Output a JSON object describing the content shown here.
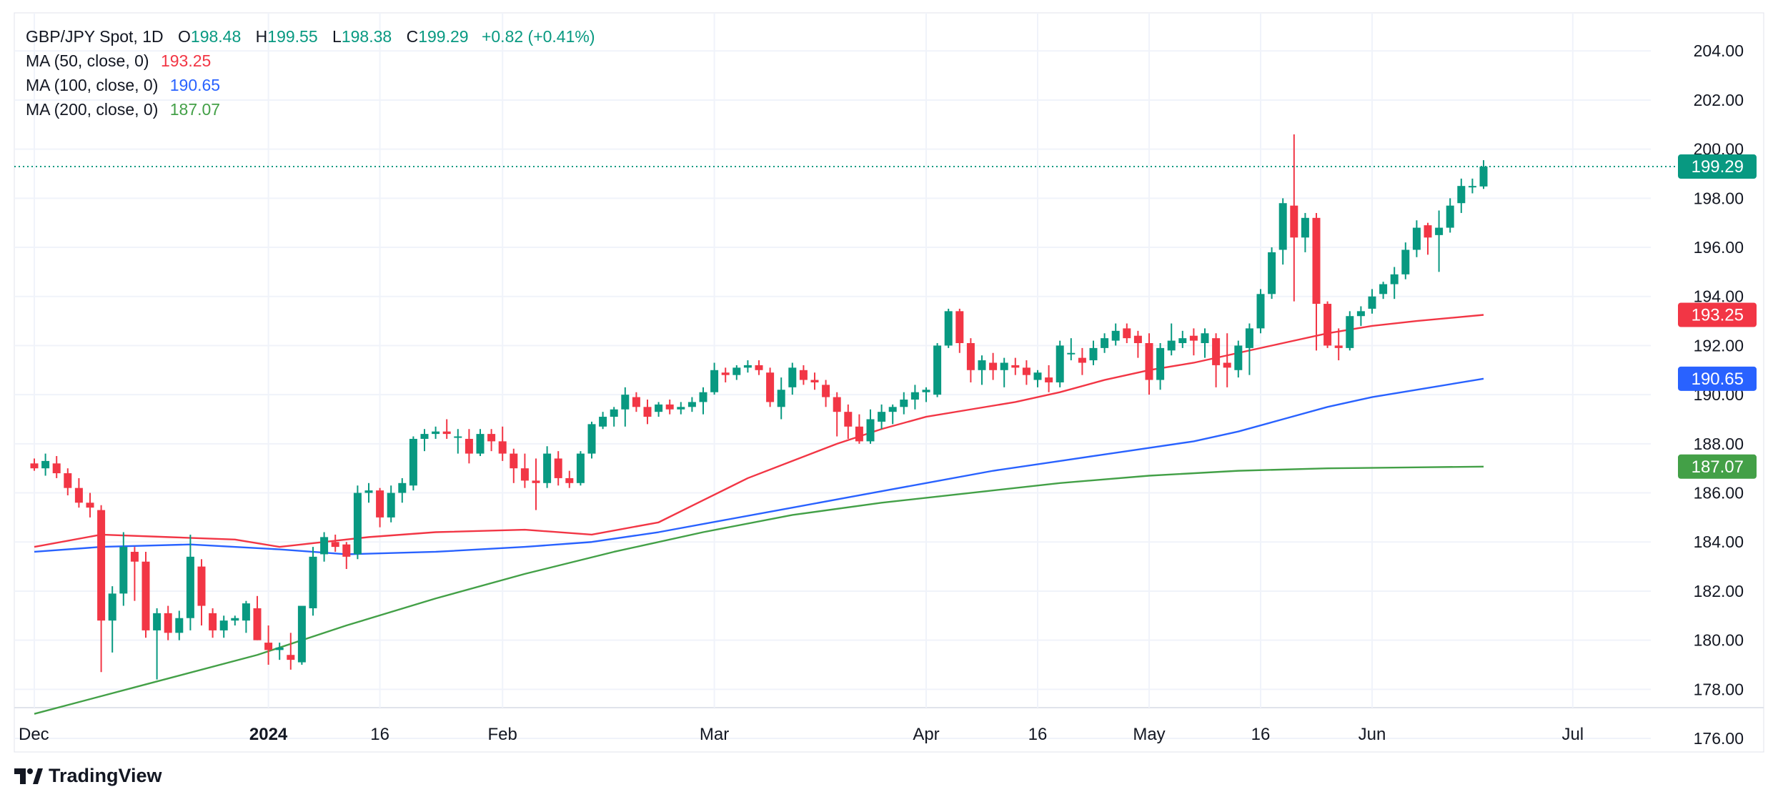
{
  "legend": {
    "symbol": "GBP/JPY Spot, 1D",
    "open_label": "O",
    "open": "198.48",
    "high_label": "H",
    "high": "199.55",
    "low_label": "L",
    "low": "198.38",
    "close_label": "C",
    "close": "199.29",
    "change": "+0.82 (+0.41%)",
    "ma50_label": "MA (50, close, 0)",
    "ma50_value": "193.25",
    "ma100_label": "MA (100, close, 0)",
    "ma100_value": "190.65",
    "ma200_label": "MA (200, close, 0)",
    "ma200_value": "187.07"
  },
  "brand": {
    "name": "TradingView"
  },
  "colors": {
    "up": "#089981",
    "down": "#f23645",
    "ma50": "#f23645",
    "ma100": "#2962ff",
    "ma200": "#43a047",
    "grid": "#f0f3fa",
    "axis_text": "#131722"
  },
  "chart_data": {
    "type": "candlestick",
    "title": "GBP/JPY Spot, 1D",
    "y_range": [
      175.5,
      204.5
    ],
    "y_ticks": [
      "176.00",
      "178.00",
      "180.00",
      "182.00",
      "184.00",
      "186.00",
      "188.00",
      "190.00",
      "192.00",
      "194.00",
      "196.00",
      "198.00",
      "200.00",
      "202.00",
      "204.00"
    ],
    "x_ticks": [
      {
        "label": "Dec",
        "index": 0,
        "bold": false
      },
      {
        "label": "2024",
        "index": 21,
        "bold": true
      },
      {
        "label": "16",
        "index": 31,
        "bold": false
      },
      {
        "label": "Feb",
        "index": 42,
        "bold": false
      },
      {
        "label": "Mar",
        "index": 61,
        "bold": false
      },
      {
        "label": "Apr",
        "index": 80,
        "bold": false
      },
      {
        "label": "16",
        "index": 90,
        "bold": false
      },
      {
        "label": "May",
        "index": 100,
        "bold": false
      },
      {
        "label": "16",
        "index": 110,
        "bold": false
      },
      {
        "label": "Jun",
        "index": 120,
        "bold": false
      },
      {
        "label": "Jul",
        "index": 138,
        "bold": false
      }
    ],
    "last_price": {
      "label": "199.29",
      "value": 199.29
    },
    "ma_labels": [
      {
        "label": "193.25",
        "value": 193.25,
        "series": "ma50"
      },
      {
        "label": "190.65",
        "value": 190.65,
        "series": "ma100"
      },
      {
        "label": "187.07",
        "value": 187.07,
        "series": "ma200"
      }
    ],
    "candles": [
      [
        0,
        187.2,
        187.4,
        186.9,
        187.0
      ],
      [
        1,
        187.0,
        187.6,
        186.7,
        187.3
      ],
      [
        2,
        187.2,
        187.5,
        186.6,
        186.8
      ],
      [
        3,
        186.8,
        187.0,
        185.9,
        186.2
      ],
      [
        4,
        186.2,
        186.6,
        185.4,
        185.6
      ],
      [
        5,
        185.6,
        186.0,
        185.0,
        185.4
      ],
      [
        6,
        185.3,
        185.5,
        178.7,
        180.8
      ],
      [
        7,
        180.8,
        182.2,
        179.5,
        181.9
      ],
      [
        8,
        181.9,
        184.4,
        181.4,
        183.8
      ],
      [
        9,
        183.6,
        183.8,
        181.6,
        183.2
      ],
      [
        10,
        183.2,
        183.6,
        180.1,
        180.4
      ],
      [
        11,
        180.4,
        181.3,
        178.4,
        181.1
      ],
      [
        12,
        181.1,
        181.4,
        180.0,
        180.3
      ],
      [
        13,
        180.3,
        181.2,
        180.0,
        180.9
      ],
      [
        14,
        180.9,
        184.3,
        180.4,
        183.4
      ],
      [
        15,
        183.0,
        183.3,
        180.6,
        181.4
      ],
      [
        16,
        181.1,
        181.3,
        180.1,
        180.4
      ],
      [
        17,
        180.4,
        181.0,
        180.1,
        180.8
      ],
      [
        18,
        180.8,
        181.0,
        180.6,
        180.9
      ],
      [
        19,
        180.8,
        181.6,
        180.3,
        181.5
      ],
      [
        20,
        181.3,
        181.8,
        180.0,
        180.0
      ],
      [
        21,
        179.9,
        180.6,
        179.0,
        179.6
      ],
      [
        22,
        179.6,
        179.9,
        179.2,
        179.7
      ],
      [
        23,
        179.4,
        180.3,
        178.8,
        179.2
      ],
      [
        24,
        179.1,
        181.2,
        179.0,
        181.4
      ],
      [
        25,
        181.3,
        183.8,
        181.0,
        183.4
      ],
      [
        26,
        183.5,
        184.4,
        183.2,
        184.2
      ],
      [
        27,
        184.0,
        184.3,
        183.6,
        183.8
      ],
      [
        28,
        183.9,
        184.0,
        182.9,
        183.4
      ],
      [
        29,
        183.5,
        186.3,
        183.3,
        186.0
      ],
      [
        30,
        186.0,
        186.4,
        185.6,
        186.1
      ],
      [
        31,
        186.1,
        186.2,
        184.6,
        185.0
      ],
      [
        32,
        185.0,
        186.3,
        184.8,
        186.0
      ],
      [
        33,
        186.0,
        186.6,
        185.6,
        186.4
      ],
      [
        34,
        186.3,
        188.3,
        186.1,
        188.2
      ],
      [
        35,
        188.2,
        188.6,
        187.7,
        188.4
      ],
      [
        36,
        188.4,
        188.7,
        188.2,
        188.5
      ],
      [
        37,
        188.5,
        189.0,
        188.2,
        188.4
      ],
      [
        38,
        188.3,
        188.6,
        187.6,
        188.3
      ],
      [
        39,
        188.2,
        188.6,
        187.2,
        187.6
      ],
      [
        40,
        187.6,
        188.6,
        187.5,
        188.4
      ],
      [
        41,
        188.4,
        188.6,
        187.7,
        188.1
      ],
      [
        42,
        188.1,
        188.7,
        187.3,
        187.6
      ],
      [
        43,
        187.6,
        187.8,
        186.4,
        187.0
      ],
      [
        44,
        187.0,
        187.6,
        186.2,
        186.5
      ],
      [
        45,
        186.5,
        187.4,
        185.3,
        186.4
      ],
      [
        46,
        186.4,
        187.9,
        186.2,
        187.6
      ],
      [
        47,
        187.4,
        187.7,
        186.3,
        186.6
      ],
      [
        48,
        186.6,
        186.9,
        186.2,
        186.4
      ],
      [
        49,
        186.4,
        187.7,
        186.3,
        187.6
      ],
      [
        50,
        187.6,
        188.9,
        187.4,
        188.8
      ],
      [
        51,
        188.7,
        189.3,
        188.6,
        189.1
      ],
      [
        52,
        189.1,
        189.5,
        188.7,
        189.4
      ],
      [
        53,
        189.4,
        190.3,
        188.7,
        190.0
      ],
      [
        54,
        189.9,
        190.1,
        189.3,
        189.5
      ],
      [
        55,
        189.5,
        189.8,
        188.8,
        189.1
      ],
      [
        56,
        189.3,
        189.7,
        189.1,
        189.6
      ],
      [
        57,
        189.6,
        189.8,
        189.2,
        189.4
      ],
      [
        58,
        189.4,
        189.7,
        189.2,
        189.5
      ],
      [
        59,
        189.5,
        189.9,
        189.3,
        189.7
      ],
      [
        60,
        189.7,
        190.3,
        189.2,
        190.1
      ],
      [
        61,
        190.1,
        191.3,
        190.0,
        191.0
      ],
      [
        62,
        190.9,
        191.1,
        190.5,
        190.8
      ],
      [
        63,
        190.8,
        191.2,
        190.6,
        191.1
      ],
      [
        64,
        191.1,
        191.4,
        190.9,
        191.2
      ],
      [
        65,
        191.2,
        191.4,
        190.8,
        191.0
      ],
      [
        66,
        190.9,
        191.1,
        189.5,
        189.7
      ],
      [
        67,
        189.5,
        190.7,
        189.0,
        190.2
      ],
      [
        68,
        190.3,
        191.3,
        190.0,
        191.1
      ],
      [
        69,
        191.0,
        191.2,
        190.4,
        190.6
      ],
      [
        70,
        190.6,
        190.9,
        190.2,
        190.5
      ],
      [
        71,
        190.4,
        190.6,
        189.5,
        189.9
      ],
      [
        72,
        189.9,
        190.1,
        188.3,
        189.3
      ],
      [
        73,
        189.3,
        189.6,
        188.2,
        188.7
      ],
      [
        74,
        188.7,
        189.2,
        188.0,
        188.1
      ],
      [
        75,
        188.1,
        189.4,
        188.0,
        189.0
      ],
      [
        76,
        188.9,
        189.6,
        188.6,
        189.3
      ],
      [
        77,
        189.3,
        189.6,
        188.8,
        189.5
      ],
      [
        78,
        189.5,
        190.1,
        189.2,
        189.8
      ],
      [
        79,
        189.8,
        190.4,
        189.4,
        190.1
      ],
      [
        80,
        190.1,
        190.3,
        189.7,
        190.2
      ],
      [
        81,
        190.0,
        192.1,
        189.9,
        192.0
      ],
      [
        82,
        192.0,
        193.5,
        191.9,
        193.4
      ],
      [
        83,
        193.4,
        193.5,
        191.7,
        192.1
      ],
      [
        84,
        192.1,
        192.3,
        190.5,
        191.0
      ],
      [
        85,
        191.0,
        191.6,
        190.4,
        191.4
      ],
      [
        86,
        191.3,
        191.7,
        190.6,
        191.0
      ],
      [
        87,
        191.0,
        191.5,
        190.3,
        191.3
      ],
      [
        88,
        191.2,
        191.5,
        190.8,
        191.1
      ],
      [
        89,
        191.1,
        191.4,
        190.4,
        190.8
      ],
      [
        90,
        190.6,
        191.0,
        190.3,
        190.9
      ],
      [
        91,
        190.7,
        191.2,
        190.1,
        190.5
      ],
      [
        92,
        190.5,
        192.2,
        190.3,
        192.0
      ],
      [
        93,
        191.7,
        192.3,
        191.4,
        191.7
      ],
      [
        94,
        191.5,
        191.9,
        190.8,
        191.3
      ],
      [
        95,
        191.4,
        192.2,
        191.2,
        191.9
      ],
      [
        96,
        191.9,
        192.5,
        191.7,
        192.3
      ],
      [
        97,
        192.2,
        192.9,
        192.0,
        192.6
      ],
      [
        98,
        192.7,
        192.9,
        192.1,
        192.3
      ],
      [
        99,
        192.4,
        192.6,
        191.5,
        192.1
      ],
      [
        100,
        192.1,
        192.5,
        190.0,
        190.6
      ],
      [
        101,
        190.6,
        192.1,
        190.2,
        191.9
      ],
      [
        102,
        191.8,
        192.9,
        191.6,
        192.2
      ],
      [
        103,
        192.1,
        192.6,
        191.9,
        192.3
      ],
      [
        104,
        192.4,
        192.7,
        191.6,
        192.2
      ],
      [
        105,
        192.1,
        192.7,
        191.5,
        192.5
      ],
      [
        106,
        192.3,
        192.5,
        190.3,
        191.2
      ],
      [
        107,
        191.3,
        192.5,
        190.3,
        191.1
      ],
      [
        108,
        191.0,
        192.2,
        190.7,
        192.0
      ],
      [
        109,
        191.9,
        192.9,
        190.8,
        192.7
      ],
      [
        110,
        192.7,
        194.3,
        192.5,
        194.1
      ],
      [
        111,
        194.1,
        196.0,
        193.9,
        195.8
      ],
      [
        112,
        195.9,
        198.0,
        195.3,
        197.8
      ],
      [
        113,
        197.7,
        200.6,
        193.8,
        196.4
      ],
      [
        114,
        196.4,
        197.4,
        195.8,
        197.2
      ],
      [
        115,
        197.2,
        197.4,
        191.8,
        193.7
      ],
      [
        116,
        193.7,
        193.8,
        191.9,
        192.0
      ],
      [
        117,
        192.0,
        192.7,
        191.4,
        191.9
      ],
      [
        118,
        191.9,
        193.4,
        191.8,
        193.2
      ],
      [
        119,
        193.2,
        193.6,
        192.8,
        193.4
      ],
      [
        120,
        193.5,
        194.3,
        193.3,
        194.0
      ],
      [
        121,
        194.1,
        194.6,
        193.9,
        194.5
      ],
      [
        122,
        194.5,
        195.2,
        193.9,
        194.9
      ],
      [
        123,
        194.9,
        196.2,
        194.7,
        195.9
      ],
      [
        124,
        195.9,
        197.1,
        195.6,
        196.8
      ],
      [
        125,
        196.9,
        197.0,
        195.7,
        196.4
      ],
      [
        126,
        196.5,
        197.5,
        195.0,
        196.8
      ],
      [
        127,
        196.8,
        198.0,
        196.6,
        197.7
      ],
      [
        128,
        197.8,
        198.8,
        197.4,
        198.5
      ],
      [
        129,
        198.5,
        198.8,
        198.2,
        198.5
      ],
      [
        130,
        198.48,
        199.55,
        198.38,
        199.29
      ]
    ],
    "ma": {
      "ma50": [
        [
          0,
          183.8
        ],
        [
          6,
          184.3
        ],
        [
          12,
          184.2
        ],
        [
          18,
          184.1
        ],
        [
          22,
          183.8
        ],
        [
          26,
          184.0
        ],
        [
          30,
          184.2
        ],
        [
          36,
          184.4
        ],
        [
          44,
          184.5
        ],
        [
          50,
          184.3
        ],
        [
          56,
          184.8
        ],
        [
          60,
          185.7
        ],
        [
          64,
          186.6
        ],
        [
          68,
          187.3
        ],
        [
          72,
          188.0
        ],
        [
          76,
          188.6
        ],
        [
          80,
          189.1
        ],
        [
          84,
          189.4
        ],
        [
          88,
          189.7
        ],
        [
          92,
          190.1
        ],
        [
          96,
          190.6
        ],
        [
          100,
          191.0
        ],
        [
          104,
          191.3
        ],
        [
          108,
          191.7
        ],
        [
          112,
          192.1
        ],
        [
          116,
          192.5
        ],
        [
          120,
          192.8
        ],
        [
          124,
          193.0
        ],
        [
          130,
          193.25
        ]
      ],
      "ma100": [
        [
          0,
          183.6
        ],
        [
          6,
          183.8
        ],
        [
          14,
          183.9
        ],
        [
          22,
          183.7
        ],
        [
          28,
          183.5
        ],
        [
          36,
          183.6
        ],
        [
          44,
          183.8
        ],
        [
          50,
          184.0
        ],
        [
          56,
          184.4
        ],
        [
          62,
          184.9
        ],
        [
          68,
          185.4
        ],
        [
          74,
          185.9
        ],
        [
          80,
          186.4
        ],
        [
          86,
          186.9
        ],
        [
          92,
          187.3
        ],
        [
          98,
          187.7
        ],
        [
          104,
          188.1
        ],
        [
          108,
          188.5
        ],
        [
          112,
          189.0
        ],
        [
          116,
          189.5
        ],
        [
          120,
          189.9
        ],
        [
          124,
          190.2
        ],
        [
          130,
          190.65
        ]
      ],
      "ma200": [
        [
          0,
          177.0
        ],
        [
          10,
          178.2
        ],
        [
          20,
          179.4
        ],
        [
          28,
          180.6
        ],
        [
          36,
          181.7
        ],
        [
          44,
          182.7
        ],
        [
          52,
          183.6
        ],
        [
          60,
          184.4
        ],
        [
          68,
          185.1
        ],
        [
          76,
          185.6
        ],
        [
          84,
          186.0
        ],
        [
          92,
          186.4
        ],
        [
          100,
          186.7
        ],
        [
          108,
          186.9
        ],
        [
          116,
          187.0
        ],
        [
          124,
          187.04
        ],
        [
          130,
          187.07
        ]
      ]
    }
  }
}
